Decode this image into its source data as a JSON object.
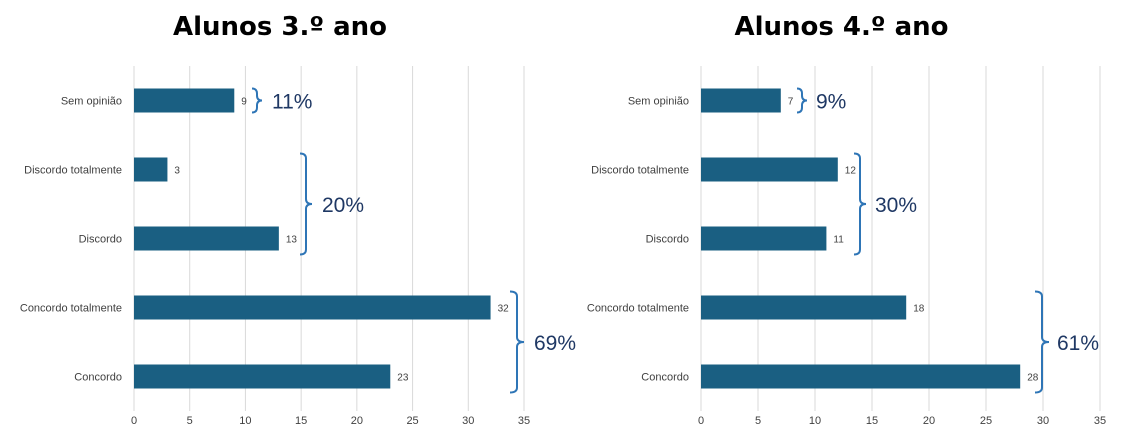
{
  "colors": {
    "bar": "#1a5f82",
    "grid": "#d9d9d9",
    "bracket": "#2e75b6",
    "percent": "#1f3864"
  },
  "chart_data": [
    {
      "type": "bar",
      "orientation": "horizontal",
      "title": "Alunos 3.º ano",
      "categories": [
        "Sem opinião",
        "Discordo totalmente",
        "Discordo",
        "Concordo totalmente",
        "Concordo"
      ],
      "values": [
        9,
        3,
        13,
        32,
        23
      ],
      "xlim": [
        0,
        35
      ],
      "xticks": [
        0,
        5,
        10,
        15,
        20,
        25,
        30,
        35
      ],
      "grid": "vertical",
      "annotations": [
        {
          "text": "11%",
          "categories": [
            "Sem opinião"
          ]
        },
        {
          "text": "20%",
          "categories": [
            "Discordo totalmente",
            "Discordo"
          ]
        },
        {
          "text": "69%",
          "categories": [
            "Concordo totalmente",
            "Concordo"
          ]
        }
      ]
    },
    {
      "type": "bar",
      "orientation": "horizontal",
      "title": "Alunos 4.º ano",
      "categories": [
        "Sem opinião",
        "Discordo totalmente",
        "Discordo",
        "Concordo totalmente",
        "Concordo"
      ],
      "values": [
        7,
        12,
        11,
        18,
        28
      ],
      "xlim": [
        0,
        35
      ],
      "xticks": [
        0,
        5,
        10,
        15,
        20,
        25,
        30,
        35
      ],
      "grid": "vertical",
      "annotations": [
        {
          "text": "9%",
          "categories": [
            "Sem opinião"
          ]
        },
        {
          "text": "30%",
          "categories": [
            "Discordo totalmente",
            "Discordo"
          ]
        },
        {
          "text": "61%",
          "categories": [
            "Concordo totalmente",
            "Concordo"
          ]
        }
      ]
    }
  ]
}
